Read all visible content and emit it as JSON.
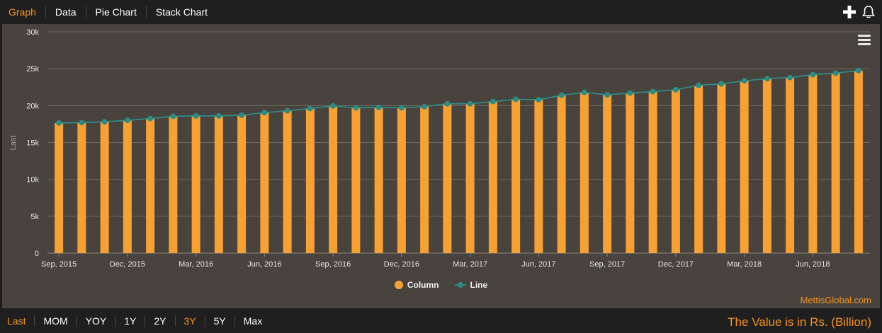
{
  "tabs": [
    {
      "label": "Graph",
      "active": true
    },
    {
      "label": "Data",
      "active": false
    },
    {
      "label": "Pie Chart",
      "active": false
    },
    {
      "label": "Stack Chart",
      "active": false
    }
  ],
  "icons": {
    "add": "plus-icon",
    "notify": "bell-icon",
    "menu": "hamburger-menu-icon"
  },
  "ranges": [
    {
      "label": "Last",
      "active": true
    },
    {
      "label": "MOM",
      "active": false
    },
    {
      "label": "YOY",
      "active": false
    },
    {
      "label": "1Y",
      "active": false
    },
    {
      "label": "2Y",
      "active": false
    },
    {
      "label": "3Y",
      "active": true
    },
    {
      "label": "5Y",
      "active": false
    },
    {
      "label": "Max",
      "active": false
    }
  ],
  "source": "MettisGlobal.com",
  "unit_note": "The Value is in Rs. (Billion)",
  "colors": {
    "accent": "#f7931e",
    "column": "#f7a133",
    "line": "#2e8b84",
    "panel": "#48433d"
  },
  "chart_data": {
    "type": "bar",
    "ylabel": "Last",
    "ylim": [
      0,
      30000
    ],
    "yticks": [
      0,
      5000,
      10000,
      15000,
      20000,
      25000,
      30000
    ],
    "ytick_labels": [
      "0",
      "5k",
      "10k",
      "15k",
      "20k",
      "25k",
      "30k"
    ],
    "xtick_labels": [
      {
        "index": 0,
        "label": "Sep, 2015"
      },
      {
        "index": 3,
        "label": "Dec, 2015"
      },
      {
        "index": 6,
        "label": "Mar, 2016"
      },
      {
        "index": 9,
        "label": "Jun, 2016"
      },
      {
        "index": 12,
        "label": "Sep, 2016"
      },
      {
        "index": 15,
        "label": "Dec, 2016"
      },
      {
        "index": 18,
        "label": "Mar, 2017"
      },
      {
        "index": 21,
        "label": "Jun, 2017"
      },
      {
        "index": 24,
        "label": "Sep, 2017"
      },
      {
        "index": 27,
        "label": "Dec, 2017"
      },
      {
        "index": 30,
        "label": "Mar, 2018"
      },
      {
        "index": 33,
        "label": "Jun, 2018"
      }
    ],
    "categories": [
      "Sep, 2015",
      "Oct, 2015",
      "Nov, 2015",
      "Dec, 2015",
      "Jan, 2016",
      "Feb, 2016",
      "Mar, 2016",
      "Apr, 2016",
      "May, 2016",
      "Jun, 2016",
      "Jul, 2016",
      "Aug, 2016",
      "Sep, 2016",
      "Oct, 2016",
      "Nov, 2016",
      "Dec, 2016",
      "Jan, 2017",
      "Feb, 2017",
      "Mar, 2017",
      "Apr, 2017",
      "May, 2017",
      "Jun, 2017",
      "Jul, 2017",
      "Aug, 2017",
      "Sep, 2017",
      "Oct, 2017",
      "Nov, 2017",
      "Dec, 2017",
      "Jan, 2018",
      "Feb, 2018",
      "Mar, 2018",
      "Apr, 2018",
      "May, 2018",
      "Jun, 2018",
      "Jul, 2018",
      "Aug, 2018"
    ],
    "series": [
      {
        "name": "Column",
        "type": "column",
        "values": [
          17650,
          17700,
          17800,
          18000,
          18250,
          18550,
          18600,
          18600,
          18700,
          19050,
          19300,
          19600,
          19950,
          19700,
          19750,
          19700,
          19850,
          20250,
          20250,
          20550,
          20850,
          20800,
          21400,
          21800,
          21450,
          21700,
          21900,
          22150,
          22750,
          22950,
          23350,
          23650,
          23800,
          24200,
          24400,
          24750
        ]
      },
      {
        "name": "Line",
        "type": "line",
        "values": [
          17650,
          17700,
          17800,
          18000,
          18250,
          18550,
          18600,
          18600,
          18700,
          19050,
          19300,
          19600,
          19950,
          19700,
          19750,
          19700,
          19850,
          20250,
          20250,
          20550,
          20850,
          20800,
          21400,
          21800,
          21450,
          21700,
          21900,
          22150,
          22750,
          22950,
          23350,
          23650,
          23800,
          24200,
          24400,
          24750
        ]
      }
    ],
    "legend": [
      "Column",
      "Line"
    ],
    "grid": true
  }
}
